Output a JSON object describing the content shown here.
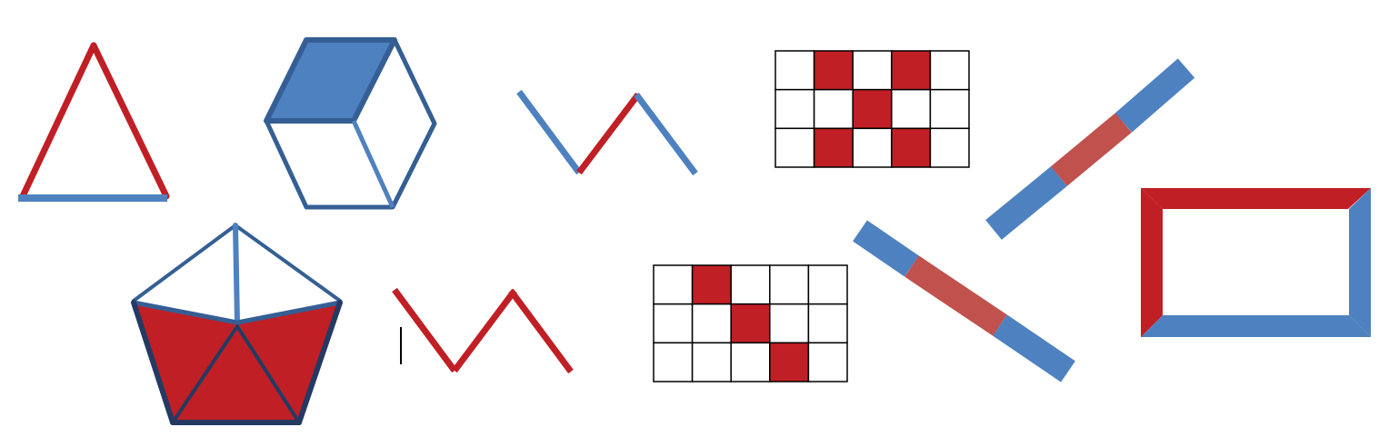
{
  "colors": {
    "red": "#c01f25",
    "blue": "#4e81c0",
    "dark_blue": "#355f94",
    "navy": "#243a63",
    "muted_red": "#c0514d",
    "grid_line": "#000000",
    "background": "#ffffff"
  },
  "shapes": [
    {
      "id": "triangle",
      "kind": "triangle outline",
      "side_colors": [
        "red",
        "red",
        "blue"
      ]
    },
    {
      "id": "hexagon-cube",
      "kind": "hexagon split into three rhombi",
      "filled_rhombi": 1,
      "fill": "blue"
    },
    {
      "id": "zigzag-top",
      "kind": "zigzag",
      "segment_colors": [
        "blue",
        "red",
        "blue"
      ]
    },
    {
      "id": "grid-top",
      "kind": "grid",
      "rows": 3,
      "cols": 5,
      "shaded_cells": [
        [
          0,
          1
        ],
        [
          0,
          3
        ],
        [
          1,
          2
        ],
        [
          2,
          1
        ],
        [
          2,
          3
        ]
      ]
    },
    {
      "id": "diagonal-bar-up",
      "kind": "bar",
      "segment_colors": [
        "blue",
        "muted_red",
        "blue"
      ]
    },
    {
      "id": "rectangle-frame",
      "kind": "rectangle frame",
      "side_colors": [
        "red",
        "blue",
        "blue",
        "red"
      ]
    },
    {
      "id": "pentagon",
      "kind": "pentagon split into five triangles",
      "filled_triangles": 3,
      "fill": "red"
    },
    {
      "id": "zigzag-bottom",
      "kind": "zigzag",
      "segment_colors": [
        "red",
        "red",
        "red",
        "red"
      ]
    },
    {
      "id": "grid-bottom",
      "kind": "grid",
      "rows": 3,
      "cols": 5,
      "shaded_cells": [
        [
          0,
          1
        ],
        [
          1,
          2
        ],
        [
          2,
          3
        ]
      ]
    },
    {
      "id": "diagonal-bar-down",
      "kind": "bar",
      "segment_colors": [
        "blue",
        "muted_red",
        "blue"
      ]
    }
  ]
}
